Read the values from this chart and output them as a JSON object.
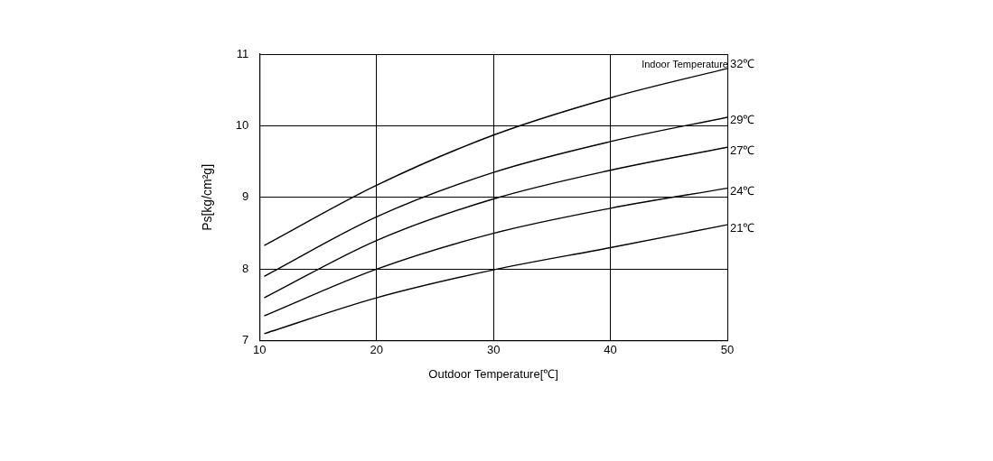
{
  "chart_data": {
    "type": "line",
    "xlabel": "Outdoor Temperature[℃]",
    "ylabel": "Ps[kg/cm²g]",
    "legend_title": "Indoor Temperature",
    "x": [
      10.4,
      20,
      30,
      40,
      50
    ],
    "series": [
      {
        "name": "32℃",
        "color": "#000000",
        "values": [
          8.33,
          9.17,
          9.87,
          10.39,
          10.8
        ]
      },
      {
        "name": "29℃",
        "color": "#000000",
        "values": [
          7.9,
          8.73,
          9.35,
          9.78,
          10.12
        ]
      },
      {
        "name": "27℃",
        "color": "#000000",
        "values": [
          7.6,
          8.4,
          8.98,
          9.38,
          9.7
        ]
      },
      {
        "name": "24℃",
        "color": "#000000",
        "values": [
          7.35,
          8.0,
          8.5,
          8.85,
          9.13
        ]
      },
      {
        "name": "21℃",
        "color": "#000000",
        "values": [
          7.1,
          7.6,
          7.99,
          8.3,
          8.62
        ]
      }
    ],
    "xlim": [
      10,
      50
    ],
    "xticks": [
      10,
      20,
      30,
      40,
      50
    ],
    "ylim": [
      7,
      11
    ],
    "yticks": [
      7,
      8,
      9,
      10,
      11
    ],
    "grid": true,
    "legend": false,
    "marker": "none",
    "line_style": "solid"
  }
}
